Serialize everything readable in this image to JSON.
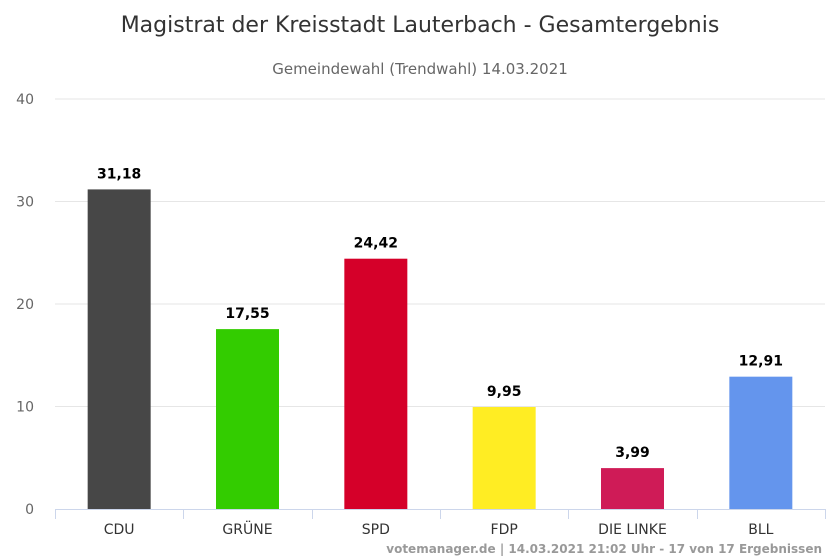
{
  "chart_data": {
    "type": "bar",
    "title": "Magistrat der Kreisstadt Lauterbach - Gesamtergebnis",
    "subtitle": "Gemeindewahl (Trendwahl) 14.03.2021",
    "categories": [
      "CDU",
      "GRÜNE",
      "SPD",
      "FDP",
      "DIE LINKE",
      "BLL"
    ],
    "values": [
      31.18,
      17.55,
      24.42,
      9.95,
      3.99,
      12.91
    ],
    "value_labels": [
      "31,18",
      "17,55",
      "24,42",
      "9,95",
      "3,99",
      "12,91"
    ],
    "colors": [
      "#474747",
      "#33cc00",
      "#d50029",
      "#ffed23",
      "#cf1b57",
      "#6495ed"
    ],
    "ylim": [
      0,
      40
    ],
    "yticks": [
      0,
      10,
      20,
      30,
      40
    ],
    "grid": true,
    "legend": "none",
    "xlabel": "",
    "ylabel": ""
  },
  "credit": "votemanager.de | 14.03.2021 21:02 Uhr - 17 von 17 Ergebnissen"
}
